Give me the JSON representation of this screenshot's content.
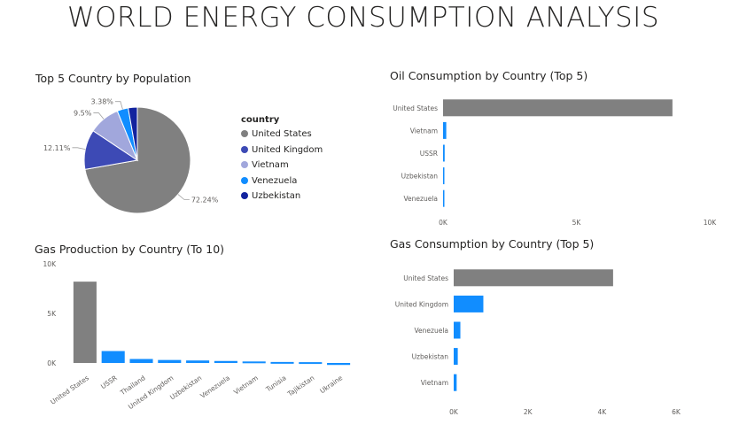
{
  "title": "WORLD ENERGY CONSUMPTION ANALYSIS",
  "colors": {
    "grey": "#808080",
    "navy": "#3D4AB5",
    "lavender": "#A1A7DC",
    "blue": "#118DFF",
    "dark_navy": "#12239E",
    "axis_text": "#605E5C",
    "title_text": "#252423"
  },
  "chart_data": [
    {
      "id": "pie",
      "type": "pie",
      "title": "Top 5 Country by Population",
      "legend_title": "country",
      "legend_position": "right",
      "slices": [
        {
          "label": "United States",
          "value": 72.24,
          "pct_label": "72.24%",
          "color": "#808080"
        },
        {
          "label": "United Kingdom",
          "value": 12.11,
          "pct_label": "12.11%",
          "color": "#3D4AB5"
        },
        {
          "label": "Vietnam",
          "value": 9.5,
          "pct_label": "9.5%",
          "color": "#A1A7DC"
        },
        {
          "label": "Venezuela",
          "value": 3.38,
          "pct_label": "3.38%",
          "color": "#118DFF"
        },
        {
          "label": "Uzbekistan",
          "value": 2.77,
          "pct_label": "",
          "color": "#12239E"
        }
      ]
    },
    {
      "id": "oil",
      "type": "bar",
      "orientation": "horizontal",
      "title": "Oil Consumption by Country (Top 5)",
      "categories": [
        "United States",
        "Vietnam",
        "USSR",
        "Uzbekistan",
        "Venezuela"
      ],
      "values": [
        8600,
        120,
        60,
        20,
        5
      ],
      "colors": [
        "#808080",
        "#118DFF",
        "#118DFF",
        "#118DFF",
        "#118DFF"
      ],
      "xlim": [
        0,
        10000
      ],
      "ticks": [
        0,
        5000,
        10000
      ],
      "tick_labels": [
        "0K",
        "5K",
        "10K"
      ]
    },
    {
      "id": "gas_prod",
      "type": "bar",
      "orientation": "vertical",
      "title": "Gas Production by Country (To 10)",
      "categories": [
        "United States",
        "USSR",
        "Thailand",
        "United Kingdom",
        "Uzbekistan",
        "Venezuela",
        "Vietnam",
        "Tunisia",
        "Tajikistan",
        "Ukraine"
      ],
      "values": [
        8200,
        1200,
        400,
        300,
        250,
        200,
        150,
        100,
        80,
        -200
      ],
      "colors": [
        "#808080",
        "#118DFF",
        "#118DFF",
        "#118DFF",
        "#118DFF",
        "#118DFF",
        "#118DFF",
        "#118DFF",
        "#118DFF",
        "#118DFF"
      ],
      "ylim": [
        0,
        10000
      ],
      "ticks": [
        0,
        5000,
        10000
      ],
      "tick_labels": [
        "0K",
        "5K",
        "10K"
      ]
    },
    {
      "id": "gas_cons",
      "type": "bar",
      "orientation": "horizontal",
      "title": "Gas Consumption by Country (Top 5)",
      "categories": [
        "United States",
        "United Kingdom",
        "Venezuela",
        "Uzbekistan",
        "Vietnam"
      ],
      "values": [
        4300,
        800,
        180,
        110,
        80
      ],
      "colors": [
        "#808080",
        "#118DFF",
        "#118DFF",
        "#118DFF",
        "#118DFF"
      ],
      "xlim": [
        0,
        6000
      ],
      "ticks": [
        0,
        2000,
        4000,
        6000
      ],
      "tick_labels": [
        "0K",
        "2K",
        "4K",
        "6K"
      ]
    }
  ]
}
